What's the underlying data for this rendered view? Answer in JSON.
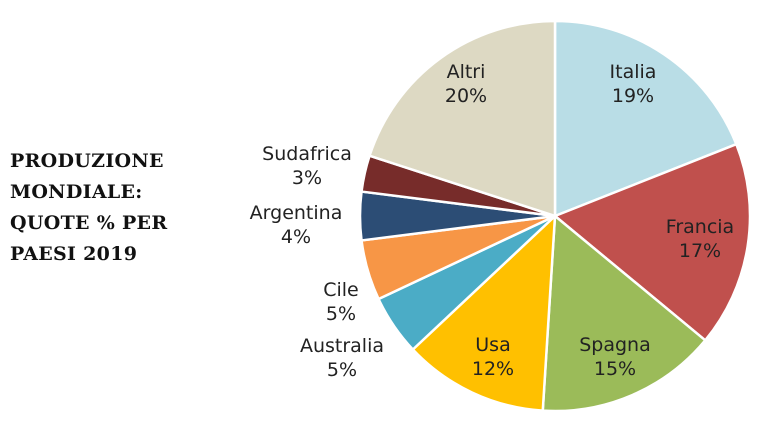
{
  "chart_data": {
    "type": "pie",
    "title_lines": [
      "PRODUZIONE",
      "MONDIALE:",
      "QUOTE % PER",
      "PAESI 2019"
    ],
    "slices": [
      {
        "label": "Italia",
        "value": 19,
        "value_label": "19%",
        "color": "#b9dde6"
      },
      {
        "label": "Francia",
        "value": 17,
        "value_label": "17%",
        "color": "#c0504d"
      },
      {
        "label": "Spagna",
        "value": 15,
        "value_label": "15%",
        "color": "#9bbb59"
      },
      {
        "label": "Usa",
        "value": 12,
        "value_label": "12%",
        "color": "#ffc000"
      },
      {
        "label": "Australia",
        "value": 5,
        "value_label": "5%",
        "color": "#4bacc6"
      },
      {
        "label": "Cile",
        "value": 5,
        "value_label": "5%",
        "color": "#f79646"
      },
      {
        "label": "Argentina",
        "value": 4,
        "value_label": "4%",
        "color": "#2c4d75"
      },
      {
        "label": "Sudafrica",
        "value": 3,
        "value_label": "3%",
        "color": "#772c2a"
      },
      {
        "label": "Altri",
        "value": 20,
        "value_label": "20%",
        "color": "#ddd9c3"
      }
    ],
    "start_angle_deg": 0,
    "direction": "clockwise"
  }
}
